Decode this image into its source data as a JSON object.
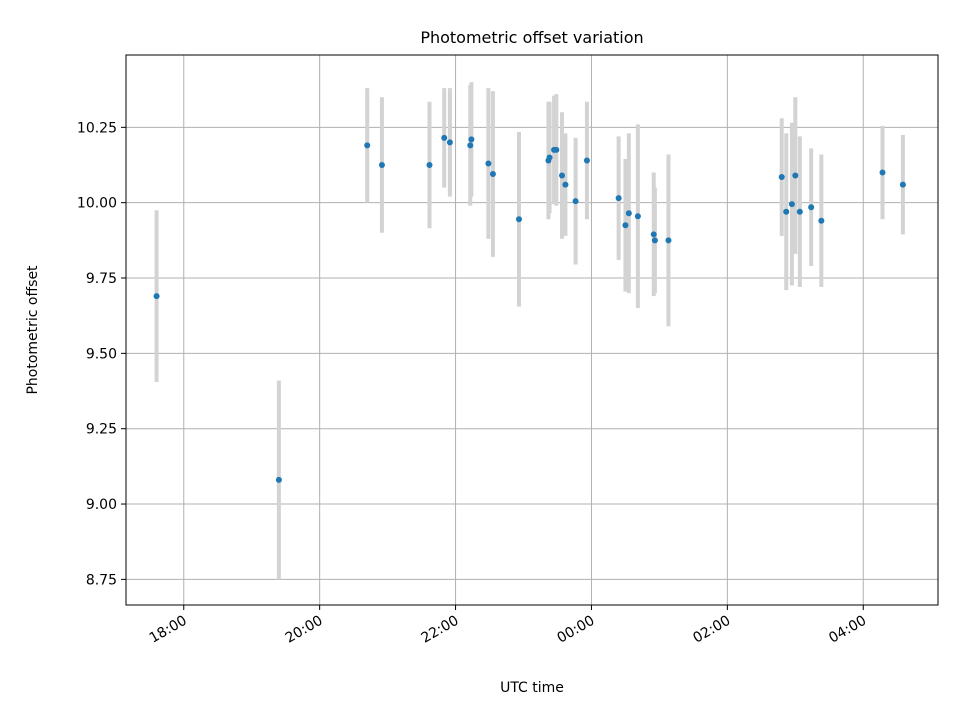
{
  "chart_data": {
    "type": "scatter",
    "title": "Photometric offset variation",
    "xlabel": "UTC time",
    "ylabel": "Photometric offset",
    "x_is_time": true,
    "xlim": [
      "17:09",
      "05:06"
    ],
    "ylim": [
      8.665,
      10.49
    ],
    "grid": true,
    "x_ticks": [
      "18:00",
      "20:00",
      "22:00",
      "00:00",
      "02:00",
      "04:00"
    ],
    "y_ticks": [
      "8.75",
      "9.00",
      "9.25",
      "9.50",
      "9.75",
      "10.00",
      "10.25"
    ],
    "marker_color": "#1f77b4",
    "errorbar_color": "#d3d3d3",
    "points": [
      {
        "x": "17:36",
        "y": 9.69,
        "err": 0.285
      },
      {
        "x": "19:24",
        "y": 9.08,
        "err": 0.33
      },
      {
        "x": "20:42",
        "y": 10.19,
        "err": 0.19
      },
      {
        "x": "20:55",
        "y": 10.125,
        "err": 0.225
      },
      {
        "x": "21:37",
        "y": 10.125,
        "err": 0.21
      },
      {
        "x": "21:50",
        "y": 10.215,
        "err": 0.165
      },
      {
        "x": "21:55",
        "y": 10.2,
        "err": 0.18
      },
      {
        "x": "22:13",
        "y": 10.19,
        "err": 0.2
      },
      {
        "x": "22:14",
        "y": 10.21,
        "err": 0.19
      },
      {
        "x": "22:29",
        "y": 10.13,
        "err": 0.25
      },
      {
        "x": "22:33",
        "y": 10.095,
        "err": 0.275
      },
      {
        "x": "22:56",
        "y": 9.945,
        "err": 0.29
      },
      {
        "x": "23:22",
        "y": 10.14,
        "err": 0.195
      },
      {
        "x": "23:23",
        "y": 10.15,
        "err": 0.185
      },
      {
        "x": "23:27",
        "y": 10.175,
        "err": 0.18
      },
      {
        "x": "23:29",
        "y": 10.175,
        "err": 0.185
      },
      {
        "x": "23:34",
        "y": 10.09,
        "err": 0.21
      },
      {
        "x": "23:37",
        "y": 10.06,
        "err": 0.17
      },
      {
        "x": "23:46",
        "y": 10.005,
        "err": 0.21
      },
      {
        "x": "23:56",
        "y": 10.14,
        "err": 0.195
      },
      {
        "x": "00:24",
        "y": 10.015,
        "err": 0.205
      },
      {
        "x": "00:30",
        "y": 9.925,
        "err": 0.22
      },
      {
        "x": "00:33",
        "y": 9.965,
        "err": 0.265
      },
      {
        "x": "00:41",
        "y": 9.955,
        "err": 0.305
      },
      {
        "x": "00:55",
        "y": 9.895,
        "err": 0.205
      },
      {
        "x": "00:56",
        "y": 9.875,
        "err": 0.175
      },
      {
        "x": "01:08",
        "y": 9.875,
        "err": 0.285
      },
      {
        "x": "02:48",
        "y": 10.085,
        "err": 0.195
      },
      {
        "x": "02:52",
        "y": 9.97,
        "err": 0.26
      },
      {
        "x": "02:57",
        "y": 9.995,
        "err": 0.27
      },
      {
        "x": "03:00",
        "y": 10.09,
        "err": 0.26
      },
      {
        "x": "03:04",
        "y": 9.97,
        "err": 0.25
      },
      {
        "x": "03:14",
        "y": 9.985,
        "err": 0.195
      },
      {
        "x": "03:23",
        "y": 9.94,
        "err": 0.22
      },
      {
        "x": "04:17",
        "y": 10.1,
        "err": 0.155
      },
      {
        "x": "04:35",
        "y": 10.06,
        "err": 0.165
      }
    ]
  }
}
